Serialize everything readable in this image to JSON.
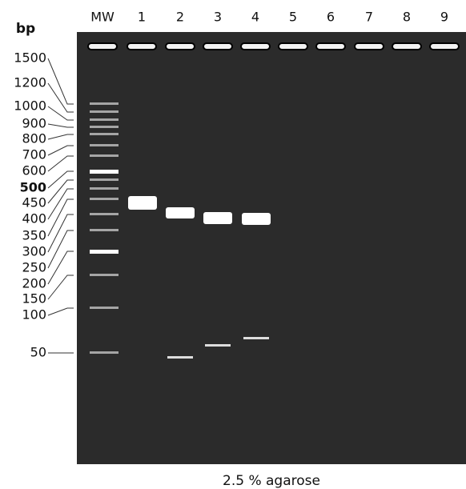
{
  "header": {
    "unit": "bp"
  },
  "lanes": [
    "MW",
    "1",
    "2",
    "3",
    "4",
    "5",
    "6",
    "7",
    "8",
    "9"
  ],
  "ladder": [
    "1500",
    "1200",
    "1000",
    "900",
    "800",
    "700",
    "600",
    "500",
    "450",
    "400",
    "350",
    "300",
    "250",
    "200",
    "150",
    "100",
    "50"
  ],
  "caption": "2.5 % agarose"
}
